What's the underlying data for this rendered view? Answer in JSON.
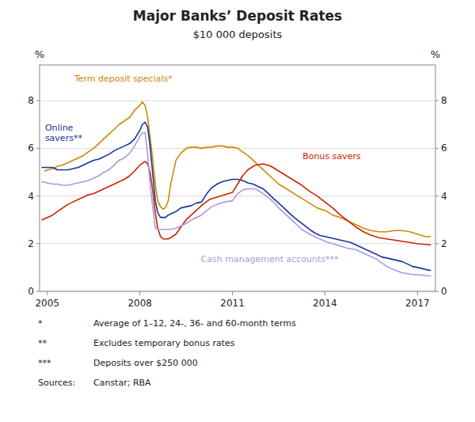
{
  "chart_data": {
    "type": "line",
    "title": "Major Banks’ Deposit Rates",
    "subtitle": "$10 000 deposits",
    "ylabel": "%",
    "y2label": "%",
    "xlim": [
      2004.75,
      2017.58
    ],
    "xticks": [
      2005,
      2008,
      2011,
      2014,
      2017
    ],
    "ylim": [
      0,
      9.5
    ],
    "yticks": [
      0,
      2,
      4,
      6,
      8
    ],
    "y2lim": [
      0,
      9.5
    ],
    "y2ticks": [
      0,
      2,
      4,
      6,
      8
    ],
    "grid": true,
    "footnotes": [
      {
        "label": "*",
        "text": "Average of 1–12, 24-, 36- and 60-month terms"
      },
      {
        "label": "**",
        "text": "Excludes temporary bonus rates"
      },
      {
        "label": "***",
        "text": "Deposits over $250 000"
      },
      {
        "label": "Sources:",
        "text": " Canstar; RBA"
      }
    ],
    "series": [
      {
        "name": "Term deposit specials*",
        "color": "#cc8800",
        "x": [
          2004.92,
          2005.0,
          2005.17,
          2005.33,
          2005.5,
          2005.67,
          2005.83,
          2006.0,
          2006.17,
          2006.33,
          2006.5,
          2006.67,
          2006.83,
          2007.0,
          2007.17,
          2007.33,
          2007.5,
          2007.67,
          2007.83,
          2008.0,
          2008.08,
          2008.17,
          2008.25,
          2008.33,
          2008.42,
          2008.5,
          2008.58,
          2008.67,
          2008.75,
          2008.83,
          2008.92,
          2009.0,
          2009.17,
          2009.33,
          2009.5,
          2009.67,
          2009.83,
          2010.0,
          2010.17,
          2010.33,
          2010.5,
          2010.67,
          2010.83,
          2011.0,
          2011.17,
          2011.33,
          2011.5,
          2011.67,
          2011.83,
          2012.0,
          2012.25,
          2012.5,
          2012.75,
          2013.0,
          2013.25,
          2013.5,
          2013.75,
          2014.0,
          2014.25,
          2014.5,
          2014.75,
          2015.0,
          2015.25,
          2015.5,
          2015.75,
          2016.0,
          2016.25,
          2016.5,
          2016.75,
          2017.0,
          2017.25,
          2017.42
        ],
        "values": [
          5.05,
          5.1,
          5.15,
          5.25,
          5.3,
          5.4,
          5.5,
          5.6,
          5.7,
          5.85,
          6.0,
          6.2,
          6.4,
          6.6,
          6.8,
          7.0,
          7.15,
          7.3,
          7.6,
          7.8,
          7.95,
          7.8,
          7.3,
          6.5,
          5.5,
          4.5,
          3.8,
          3.55,
          3.45,
          3.5,
          3.8,
          4.5,
          5.5,
          5.8,
          6.0,
          6.05,
          6.05,
          6.0,
          6.05,
          6.05,
          6.1,
          6.1,
          6.05,
          6.05,
          6.0,
          5.85,
          5.7,
          5.5,
          5.3,
          5.1,
          4.8,
          4.5,
          4.3,
          4.1,
          3.9,
          3.7,
          3.5,
          3.4,
          3.2,
          3.1,
          2.95,
          2.8,
          2.65,
          2.55,
          2.5,
          2.5,
          2.55,
          2.55,
          2.5,
          2.4,
          2.3,
          2.3
        ]
      },
      {
        "name": "Online\nsavers**",
        "color": "#1a3399",
        "x": [
          2004.83,
          2005.0,
          2005.17,
          2005.33,
          2005.5,
          2005.67,
          2005.83,
          2006.0,
          2006.17,
          2006.33,
          2006.5,
          2006.67,
          2006.83,
          2007.0,
          2007.17,
          2007.33,
          2007.5,
          2007.67,
          2007.83,
          2008.0,
          2008.08,
          2008.17,
          2008.25,
          2008.33,
          2008.42,
          2008.5,
          2008.58,
          2008.67,
          2008.75,
          2008.83,
          2008.92,
          2009.0,
          2009.08,
          2009.17,
          2009.33,
          2009.5,
          2009.67,
          2009.83,
          2010.0,
          2010.17,
          2010.33,
          2010.5,
          2010.67,
          2010.83,
          2011.0,
          2011.17,
          2011.33,
          2011.42,
          2011.5,
          2011.67,
          2011.75,
          2011.83,
          2012.0,
          2012.17,
          2012.33,
          2012.5,
          2012.67,
          2012.83,
          2013.0,
          2013.25,
          2013.5,
          2013.67,
          2013.83,
          2014.0,
          2014.17,
          2014.33,
          2014.5,
          2014.67,
          2014.83,
          2015.0,
          2015.17,
          2015.33,
          2015.42,
          2015.5,
          2015.67,
          2015.83,
          2016.0,
          2016.17,
          2016.33,
          2016.5,
          2016.67,
          2016.83,
          2017.0,
          2017.17,
          2017.33,
          2017.42
        ],
        "values": [
          5.2,
          5.2,
          5.2,
          5.1,
          5.1,
          5.1,
          5.15,
          5.2,
          5.3,
          5.4,
          5.5,
          5.55,
          5.65,
          5.75,
          5.9,
          6.0,
          6.1,
          6.2,
          6.4,
          6.75,
          7.0,
          7.1,
          6.9,
          6.1,
          4.9,
          3.8,
          3.3,
          3.1,
          3.1,
          3.1,
          3.2,
          3.25,
          3.3,
          3.35,
          3.5,
          3.55,
          3.6,
          3.7,
          3.75,
          4.1,
          4.35,
          4.5,
          4.6,
          4.65,
          4.7,
          4.7,
          4.65,
          4.6,
          4.55,
          4.5,
          4.45,
          4.4,
          4.3,
          4.1,
          3.9,
          3.7,
          3.5,
          3.3,
          3.1,
          2.85,
          2.6,
          2.45,
          2.35,
          2.3,
          2.25,
          2.2,
          2.15,
          2.1,
          2.05,
          1.95,
          1.85,
          1.75,
          1.7,
          1.65,
          1.55,
          1.45,
          1.4,
          1.35,
          1.3,
          1.25,
          1.15,
          1.05,
          1.0,
          0.95,
          0.9,
          0.88
        ]
      },
      {
        "name": "Bonus savers",
        "color": "#cc2200",
        "x": [
          2004.83,
          2005.0,
          2005.17,
          2005.33,
          2005.5,
          2005.67,
          2005.83,
          2006.0,
          2006.17,
          2006.33,
          2006.5,
          2006.67,
          2006.83,
          2007.0,
          2007.17,
          2007.33,
          2007.5,
          2007.67,
          2007.83,
          2008.0,
          2008.17,
          2008.25,
          2008.33,
          2008.42,
          2008.5,
          2008.58,
          2008.67,
          2008.75,
          2008.83,
          2008.92,
          2009.0,
          2009.17,
          2009.33,
          2009.5,
          2009.75,
          2010.0,
          2010.25,
          2010.5,
          2010.75,
          2011.0,
          2011.17,
          2011.33,
          2011.5,
          2011.75,
          2012.0,
          2012.25,
          2012.5,
          2012.75,
          2013.0,
          2013.25,
          2013.5,
          2013.75,
          2014.0,
          2014.25,
          2014.5,
          2014.75,
          2015.0,
          2015.25,
          2015.5,
          2015.75,
          2016.0,
          2016.25,
          2016.5,
          2016.75,
          2017.0,
          2017.25,
          2017.42
        ],
        "values": [
          3.0,
          3.1,
          3.2,
          3.35,
          3.5,
          3.65,
          3.75,
          3.85,
          3.95,
          4.05,
          4.1,
          4.2,
          4.3,
          4.4,
          4.5,
          4.6,
          4.7,
          4.85,
          5.05,
          5.3,
          5.45,
          5.35,
          5.0,
          4.2,
          3.3,
          2.65,
          2.3,
          2.2,
          2.2,
          2.2,
          2.25,
          2.4,
          2.7,
          3.0,
          3.3,
          3.6,
          3.85,
          3.95,
          4.05,
          4.15,
          4.5,
          4.85,
          5.1,
          5.3,
          5.35,
          5.25,
          5.05,
          4.85,
          4.65,
          4.45,
          4.2,
          4.0,
          3.75,
          3.5,
          3.2,
          2.95,
          2.7,
          2.5,
          2.35,
          2.25,
          2.2,
          2.15,
          2.1,
          2.05,
          2.0,
          1.97,
          1.95
        ]
      },
      {
        "name": "Cash management accounts***",
        "color": "#aa99dd",
        "x": [
          2004.83,
          2005.0,
          2005.17,
          2005.33,
          2005.5,
          2005.67,
          2005.83,
          2006.0,
          2006.17,
          2006.33,
          2006.5,
          2006.67,
          2006.83,
          2007.0,
          2007.17,
          2007.33,
          2007.5,
          2007.67,
          2007.83,
          2008.0,
          2008.08,
          2008.17,
          2008.25,
          2008.33,
          2008.5,
          2008.58,
          2008.67,
          2008.75,
          2008.83,
          2008.92,
          2009.0,
          2009.17,
          2009.33,
          2009.5,
          2009.75,
          2010.0,
          2010.17,
          2010.33,
          2010.5,
          2010.75,
          2011.0,
          2011.17,
          2011.33,
          2011.5,
          2011.67,
          2011.75,
          2012.0,
          2012.25,
          2012.5,
          2012.75,
          2013.0,
          2013.25,
          2013.5,
          2013.75,
          2014.0,
          2014.25,
          2014.5,
          2014.75,
          2015.0,
          2015.17,
          2015.33,
          2015.5,
          2015.67,
          2015.83,
          2016.0,
          2016.25,
          2016.5,
          2016.75,
          2017.0,
          2017.17,
          2017.33,
          2017.42
        ],
        "values": [
          4.6,
          4.55,
          4.5,
          4.5,
          4.45,
          4.45,
          4.5,
          4.55,
          4.6,
          4.65,
          4.75,
          4.85,
          5.0,
          5.1,
          5.3,
          5.5,
          5.6,
          5.8,
          6.1,
          6.5,
          6.65,
          6.65,
          5.8,
          4.5,
          2.65,
          2.6,
          2.6,
          2.6,
          2.6,
          2.6,
          2.6,
          2.65,
          2.75,
          2.85,
          3.05,
          3.2,
          3.4,
          3.55,
          3.65,
          3.75,
          3.8,
          4.1,
          4.25,
          4.3,
          4.3,
          4.3,
          4.1,
          3.85,
          3.5,
          3.2,
          2.9,
          2.6,
          2.4,
          2.25,
          2.1,
          2.0,
          1.9,
          1.8,
          1.75,
          1.65,
          1.55,
          1.45,
          1.35,
          1.2,
          1.05,
          0.9,
          0.78,
          0.72,
          0.7,
          0.68,
          0.65,
          0.65
        ]
      }
    ]
  }
}
